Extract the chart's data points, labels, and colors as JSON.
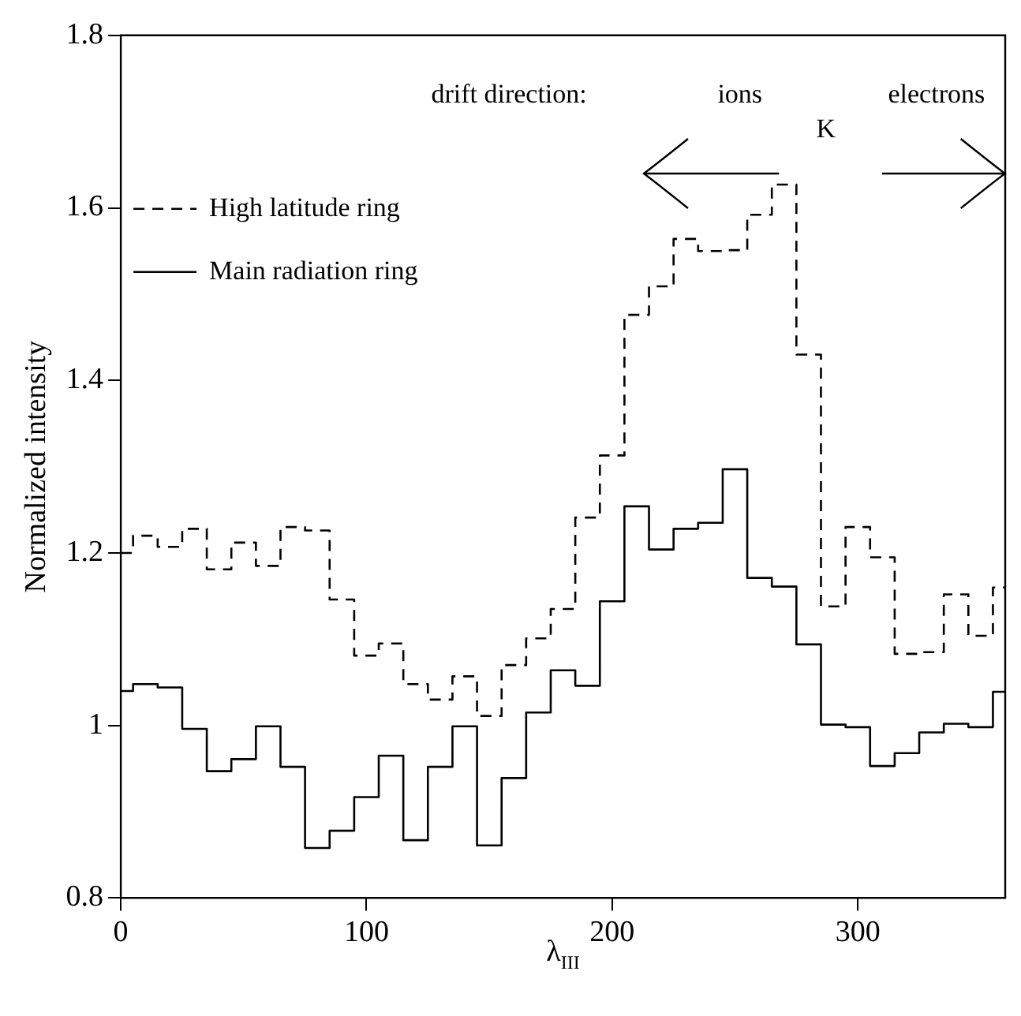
{
  "chart_data": {
    "type": "step",
    "xlabel": "λ$_{III}$",
    "ylabel": "Normalized intensity",
    "x": [
      0,
      10,
      20,
      30,
      40,
      50,
      60,
      70,
      80,
      90,
      100,
      110,
      120,
      130,
      140,
      150,
      160,
      170,
      180,
      190,
      200,
      210,
      220,
      230,
      240,
      250,
      260,
      270,
      280,
      290,
      300,
      310,
      320,
      330,
      340,
      350,
      360
    ],
    "series": [
      {
        "name": "High latitude ring",
        "color": "#000000",
        "line_style": "dashed",
        "values": [
          1.2,
          1.22,
          1.207,
          1.228,
          1.181,
          1.212,
          1.185,
          1.23,
          1.226,
          1.146,
          1.081,
          1.095,
          1.048,
          1.03,
          1.057,
          1.011,
          1.07,
          1.101,
          1.135,
          1.241,
          1.313,
          1.476,
          1.509,
          1.564,
          1.55,
          1.551,
          1.592,
          1.627,
          1.43,
          1.138,
          1.23,
          1.195,
          1.083,
          1.085,
          1.152,
          1.104,
          1.16
        ]
      },
      {
        "name": "Main radiation ring",
        "color": "#000000",
        "line_style": "solid",
        "values": [
          1.04,
          1.048,
          1.044,
          0.996,
          0.947,
          0.961,
          0.999,
          0.952,
          0.858,
          0.878,
          0.917,
          0.965,
          0.867,
          0.952,
          0.999,
          0.861,
          0.939,
          1.015,
          1.064,
          1.046,
          1.144,
          1.254,
          1.204,
          1.228,
          1.235,
          1.297,
          1.171,
          1.161,
          1.094,
          1.001,
          0.998,
          0.953,
          0.968,
          0.992,
          1.002,
          0.998,
          1.039
        ]
      }
    ],
    "xlim": [
      0,
      360
    ],
    "xticks": [
      0,
      100,
      200,
      300
    ],
    "ylim": [
      0.8,
      1.8
    ],
    "yticks": [
      0.8,
      1,
      1.2,
      1.4,
      1.6,
      1.8
    ],
    "grid": false,
    "legend": "top left",
    "annotations": [
      "drift direction:",
      "ions",
      "K",
      "electrons"
    ]
  }
}
